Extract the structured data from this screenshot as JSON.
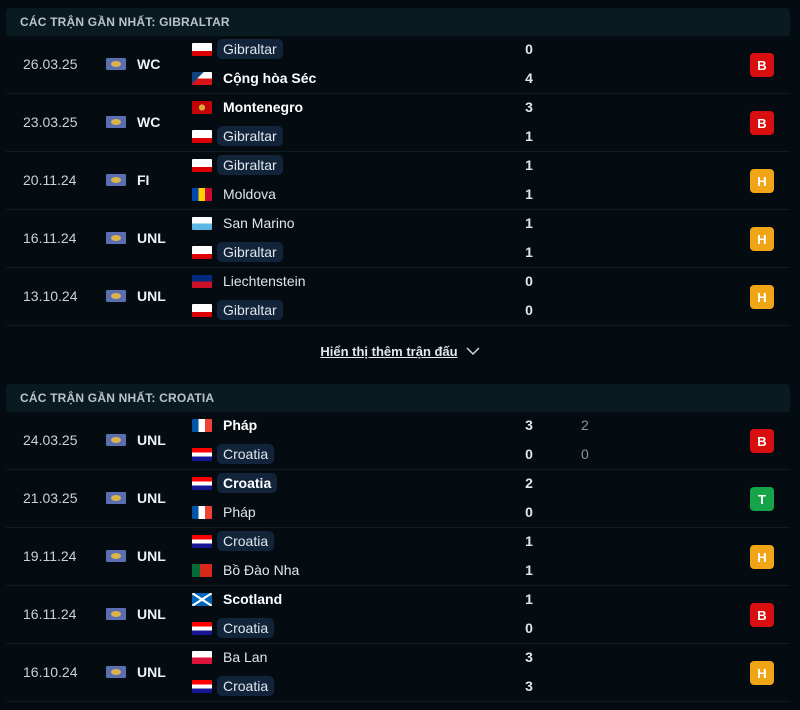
{
  "colors": {
    "B": "#d90f0f",
    "H": "#f0a516",
    "T": "#16a34a"
  },
  "sections": [
    {
      "title": "CÁC TRẬN GẦN NHẤT: GIBRALTAR",
      "matches": [
        {
          "date": "26.03.25",
          "comp": "WC",
          "home": "Gibraltar",
          "away": "Cộng hòa Séc",
          "hs": "0",
          "as": "4",
          "result": "B",
          "hf": "gib",
          "af": "cze",
          "hl": "home",
          "win": "away"
        },
        {
          "date": "23.03.25",
          "comp": "WC",
          "home": "Montenegro",
          "away": "Gibraltar",
          "hs": "3",
          "as": "1",
          "result": "B",
          "hf": "mne",
          "af": "gib",
          "hl": "away",
          "win": "home"
        },
        {
          "date": "20.11.24",
          "comp": "FI",
          "home": "Gibraltar",
          "away": "Moldova",
          "hs": "1",
          "as": "1",
          "result": "H",
          "hf": "gib",
          "af": "mda",
          "hl": "home",
          "win": ""
        },
        {
          "date": "16.11.24",
          "comp": "UNL",
          "home": "San Marino",
          "away": "Gibraltar",
          "hs": "1",
          "as": "1",
          "result": "H",
          "hf": "smr",
          "af": "gib",
          "hl": "away",
          "win": ""
        },
        {
          "date": "13.10.24",
          "comp": "UNL",
          "home": "Liechtenstein",
          "away": "Gibraltar",
          "hs": "0",
          "as": "0",
          "result": "H",
          "hf": "lie",
          "af": "gib",
          "hl": "away",
          "win": ""
        }
      ]
    },
    {
      "title": "CÁC TRẬN GẦN NHẤT: CROATIA",
      "matches": [
        {
          "date": "24.03.25",
          "comp": "UNL",
          "home": "Pháp",
          "away": "Croatia",
          "hs": "3",
          "as": "0",
          "hp": "2",
          "ap": "0",
          "result": "B",
          "hf": "fra",
          "af": "cro",
          "hl": "away",
          "win": "home"
        },
        {
          "date": "21.03.25",
          "comp": "UNL",
          "home": "Croatia",
          "away": "Pháp",
          "hs": "2",
          "as": "0",
          "result": "T",
          "hf": "cro",
          "af": "fra",
          "hl": "home",
          "win": "home"
        },
        {
          "date": "19.11.24",
          "comp": "UNL",
          "home": "Croatia",
          "away": "Bồ Đào Nha",
          "hs": "1",
          "as": "1",
          "result": "H",
          "hf": "cro",
          "af": "por",
          "hl": "home",
          "win": ""
        },
        {
          "date": "16.11.24",
          "comp": "UNL",
          "home": "Scotland",
          "away": "Croatia",
          "hs": "1",
          "as": "0",
          "result": "B",
          "hf": "sco",
          "af": "cro",
          "hl": "away",
          "win": "home"
        },
        {
          "date": "16.10.24",
          "comp": "UNL",
          "home": "Ba Lan",
          "away": "Croatia",
          "hs": "3",
          "as": "3",
          "result": "H",
          "hf": "pol",
          "af": "cro",
          "hl": "away",
          "win": ""
        }
      ]
    }
  ],
  "show_more": "Hiển thị thêm trận đấu"
}
